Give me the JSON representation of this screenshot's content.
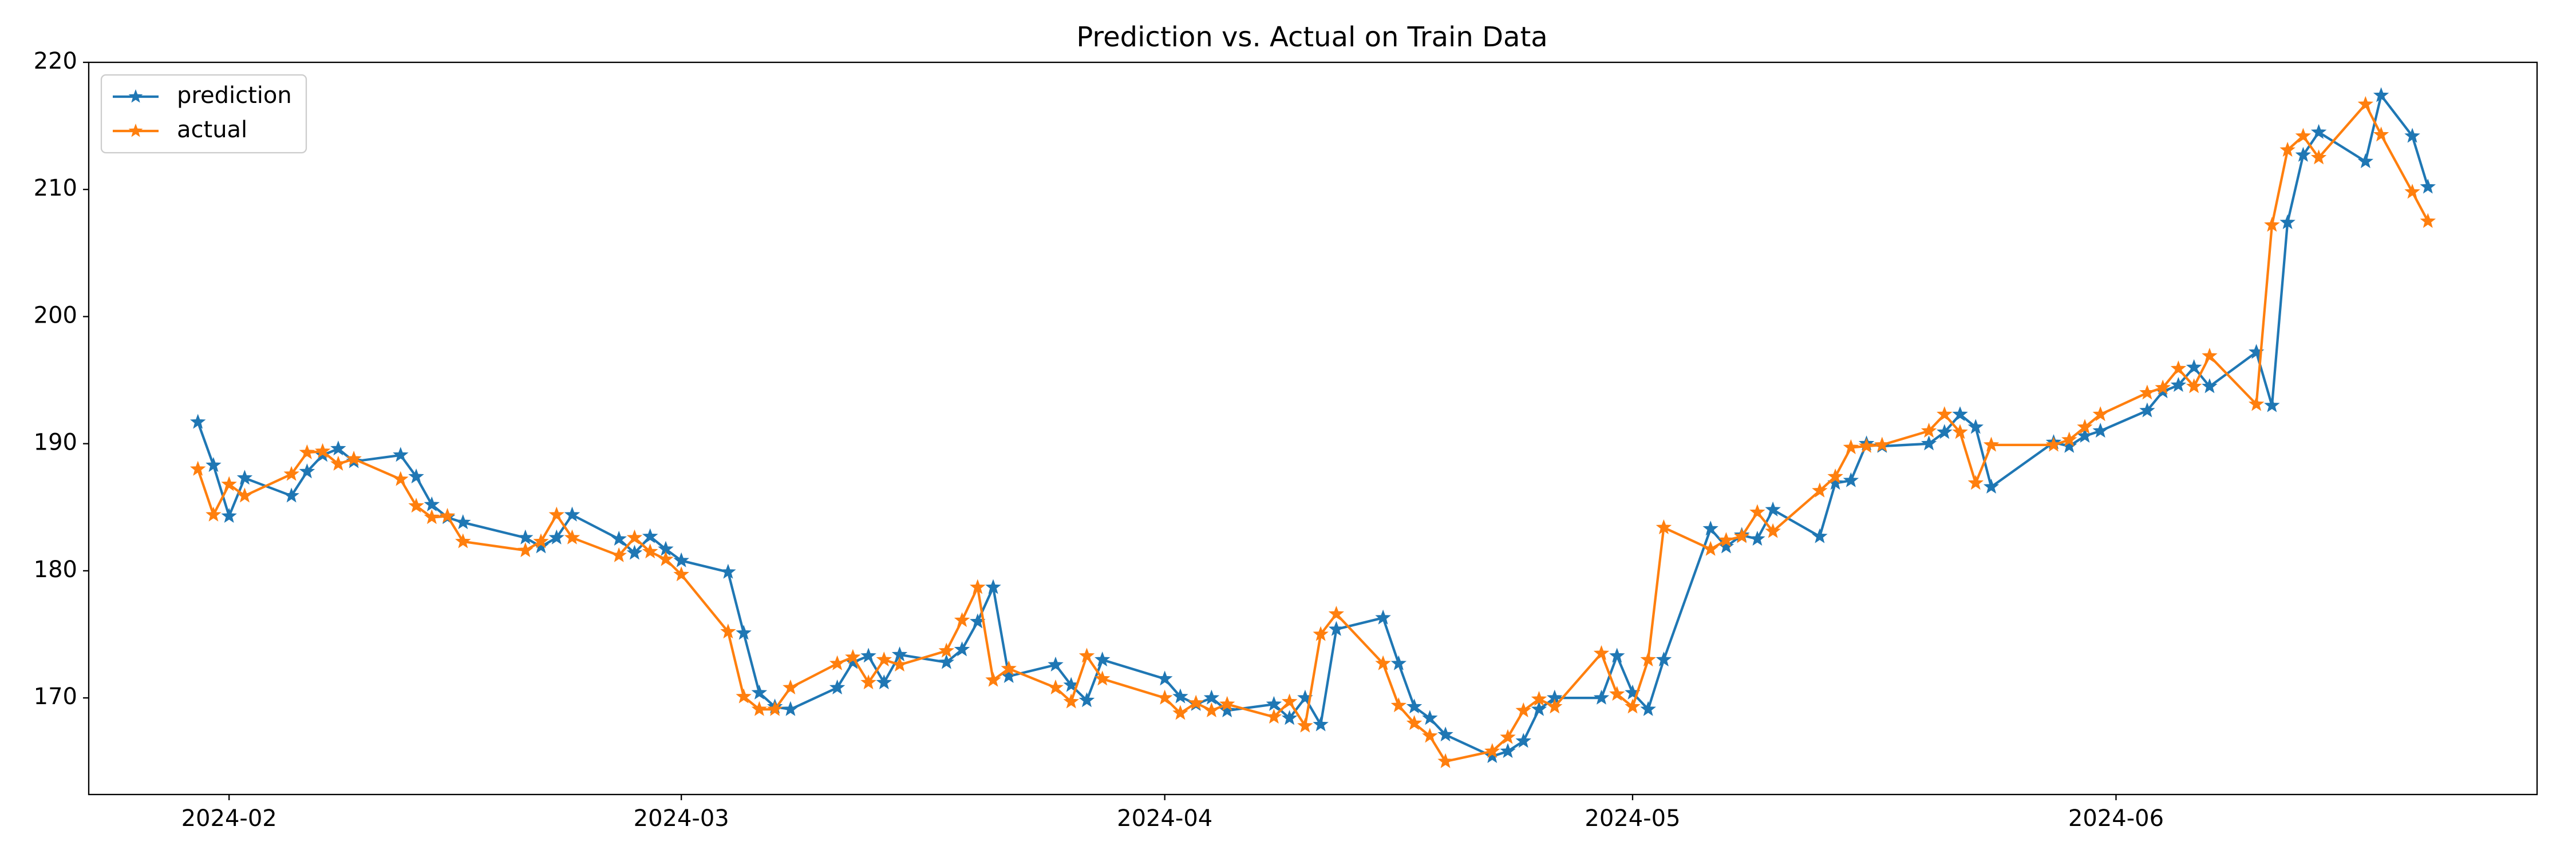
{
  "chart_data": {
    "type": "line",
    "title": "Prediction vs. Actual on Train Data",
    "x": [
      "2024-01-30",
      "2024-01-31",
      "2024-02-01",
      "2024-02-02",
      "2024-02-05",
      "2024-02-06",
      "2024-02-07",
      "2024-02-08",
      "2024-02-09",
      "2024-02-12",
      "2024-02-13",
      "2024-02-14",
      "2024-02-15",
      "2024-02-16",
      "2024-02-20",
      "2024-02-21",
      "2024-02-22",
      "2024-02-23",
      "2024-02-26",
      "2024-02-27",
      "2024-02-28",
      "2024-02-29",
      "2024-03-01",
      "2024-03-04",
      "2024-03-05",
      "2024-03-06",
      "2024-03-07",
      "2024-03-08",
      "2024-03-11",
      "2024-03-12",
      "2024-03-13",
      "2024-03-14",
      "2024-03-15",
      "2024-03-18",
      "2024-03-19",
      "2024-03-20",
      "2024-03-21",
      "2024-03-22",
      "2024-03-25",
      "2024-03-26",
      "2024-03-27",
      "2024-03-28",
      "2024-04-01",
      "2024-04-02",
      "2024-04-03",
      "2024-04-04",
      "2024-04-05",
      "2024-04-08",
      "2024-04-09",
      "2024-04-10",
      "2024-04-11",
      "2024-04-12",
      "2024-04-15",
      "2024-04-16",
      "2024-04-17",
      "2024-04-18",
      "2024-04-19",
      "2024-04-22",
      "2024-04-23",
      "2024-04-24",
      "2024-04-25",
      "2024-04-26",
      "2024-04-29",
      "2024-04-30",
      "2024-05-01",
      "2024-05-02",
      "2024-05-03",
      "2024-05-06",
      "2024-05-07",
      "2024-05-08",
      "2024-05-09",
      "2024-05-10",
      "2024-05-13",
      "2024-05-14",
      "2024-05-15",
      "2024-05-16",
      "2024-05-17",
      "2024-05-20",
      "2024-05-21",
      "2024-05-22",
      "2024-05-23",
      "2024-05-24",
      "2024-05-28",
      "2024-05-29",
      "2024-05-30",
      "2024-05-31",
      "2024-06-03",
      "2024-06-04",
      "2024-06-05",
      "2024-06-06",
      "2024-06-07",
      "2024-06-10",
      "2024-06-11",
      "2024-06-12",
      "2024-06-13",
      "2024-06-14",
      "2024-06-17",
      "2024-06-18",
      "2024-06-20",
      "2024-06-21"
    ],
    "series": [
      {
        "name": "prediction",
        "color": "#1f77b4",
        "values": [
          191.7,
          188.3,
          184.3,
          187.3,
          185.9,
          187.8,
          189.1,
          189.6,
          188.6,
          189.1,
          187.4,
          185.2,
          184.2,
          183.8,
          182.6,
          181.9,
          182.6,
          184.4,
          182.5,
          181.4,
          182.7,
          181.7,
          180.8,
          179.9,
          175.1,
          170.4,
          169.3,
          169.1,
          170.8,
          172.8,
          173.3,
          171.2,
          173.4,
          172.8,
          173.8,
          176.0,
          178.7,
          171.7,
          172.6,
          171.0,
          169.8,
          173.0,
          171.5,
          170.1,
          169.5,
          170.0,
          169.0,
          169.5,
          168.4,
          170.0,
          167.9,
          175.4,
          176.3,
          172.7,
          169.3,
          168.4,
          167.1,
          165.4,
          165.8,
          166.6,
          169.1,
          170.0,
          170.0,
          173.3,
          170.4,
          169.1,
          173.0,
          183.3,
          181.9,
          182.8,
          182.5,
          184.8,
          182.7,
          186.9,
          187.1,
          190.0,
          189.8,
          190.0,
          190.9,
          192.3,
          191.3,
          186.6,
          190.1,
          189.8,
          190.6,
          191.0,
          192.6,
          194.1,
          194.6,
          196.0,
          194.5,
          197.2,
          193.0,
          207.4,
          212.7,
          214.5,
          212.2,
          217.4,
          214.2,
          210.2
        ]
      },
      {
        "name": "actual",
        "color": "#ff7f0e",
        "values": [
          188.0,
          184.4,
          186.8,
          185.9,
          187.6,
          189.3,
          189.4,
          188.4,
          188.8,
          187.2,
          185.1,
          184.2,
          184.3,
          182.3,
          181.6,
          182.3,
          184.4,
          182.6,
          181.2,
          182.6,
          181.5,
          180.9,
          179.7,
          175.2,
          170.1,
          169.1,
          169.1,
          170.8,
          172.7,
          173.2,
          171.2,
          173.0,
          172.6,
          173.7,
          176.1,
          178.7,
          171.4,
          172.3,
          170.8,
          169.7,
          173.3,
          171.5,
          170.0,
          168.8,
          169.6,
          169.0,
          169.5,
          168.5,
          169.7,
          167.8,
          175.0,
          176.6,
          172.7,
          169.4,
          168.0,
          167.0,
          165.0,
          165.8,
          166.9,
          169.0,
          169.9,
          169.3,
          173.5,
          170.3,
          169.3,
          173.0,
          183.4,
          181.7,
          182.4,
          182.7,
          184.6,
          183.1,
          186.3,
          187.4,
          189.7,
          189.8,
          189.9,
          191.0,
          192.3,
          190.9,
          186.9,
          189.9,
          189.9,
          190.3,
          191.3,
          192.3,
          194.0,
          194.4,
          195.9,
          194.5,
          196.9,
          193.1,
          207.2,
          213.1,
          214.2,
          212.5,
          216.7,
          214.3,
          209.8,
          207.5
        ]
      }
    ],
    "xlim": [
      "2024-01-23",
      "2024-06-28"
    ],
    "xticks": [
      {
        "value": "2024-02-01",
        "label": "2024-02"
      },
      {
        "value": "2024-03-01",
        "label": "2024-03"
      },
      {
        "value": "2024-04-01",
        "label": "2024-04"
      },
      {
        "value": "2024-05-01",
        "label": "2024-05"
      },
      {
        "value": "2024-06-01",
        "label": "2024-06"
      }
    ],
    "ylim": [
      162.4,
      220
    ],
    "yticks": [
      170,
      180,
      190,
      200,
      210,
      220
    ],
    "grid": false,
    "legend": "upper left",
    "marker": "star"
  }
}
